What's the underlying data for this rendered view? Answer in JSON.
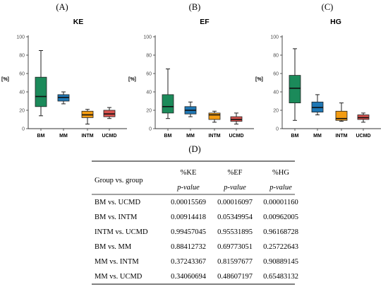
{
  "colors": {
    "BM": "#1b8a5a",
    "MM": "#1f77b4",
    "INTM": "#f39c12",
    "UCMD": "#d9534f"
  },
  "chart_data": [
    {
      "type": "box",
      "letter": "(A)",
      "title": "KE",
      "ylabel": "[%]",
      "ylim": [
        0,
        100
      ],
      "yticks": [
        0,
        20,
        40,
        60,
        80,
        100
      ],
      "categories": [
        "BM",
        "MM",
        "INTM",
        "UCMD"
      ],
      "boxes": [
        {
          "category": "BM",
          "min": 14,
          "q1": 24,
          "median": 35,
          "q3": 56,
          "max": 85
        },
        {
          "category": "MM",
          "min": 27,
          "q1": 30,
          "median": 34,
          "q3": 37,
          "max": 40
        },
        {
          "category": "INTM",
          "min": 5,
          "q1": 12,
          "median": 15,
          "q3": 19,
          "max": 21
        },
        {
          "category": "UCMD",
          "min": 11,
          "q1": 13,
          "median": 16,
          "q3": 20,
          "max": 23
        }
      ]
    },
    {
      "type": "box",
      "letter": "(B)",
      "title": "EF",
      "ylabel": "[%]",
      "ylim": [
        0,
        100
      ],
      "yticks": [
        0,
        20,
        40,
        60,
        80,
        100
      ],
      "categories": [
        "BM",
        "MM",
        "INTM",
        "UCMD"
      ],
      "boxes": [
        {
          "category": "BM",
          "min": 11,
          "q1": 17,
          "median": 24,
          "q3": 37,
          "max": 65
        },
        {
          "category": "MM",
          "min": 13,
          "q1": 16,
          "median": 20,
          "q3": 24,
          "max": 29
        },
        {
          "category": "INTM",
          "min": 7,
          "q1": 10,
          "median": 15,
          "q3": 17,
          "max": 19
        },
        {
          "category": "UCMD",
          "min": 5,
          "q1": 8,
          "median": 10,
          "q3": 13,
          "max": 17
        }
      ]
    },
    {
      "type": "box",
      "letter": "(C)",
      "title": "HG",
      "ylabel": "[%]",
      "ylim": [
        0,
        100
      ],
      "yticks": [
        0,
        20,
        40,
        60,
        80,
        100
      ],
      "categories": [
        "BM",
        "MM",
        "INTM",
        "UCMD"
      ],
      "boxes": [
        {
          "category": "BM",
          "min": 9,
          "q1": 28,
          "median": 44,
          "q3": 58,
          "max": 87
        },
        {
          "category": "MM",
          "min": 15,
          "q1": 18,
          "median": 23,
          "q3": 29,
          "max": 37
        },
        {
          "category": "INTM",
          "min": 8,
          "q1": 9,
          "median": 11,
          "q3": 19,
          "max": 28
        },
        {
          "category": "UCMD",
          "min": 7,
          "q1": 10,
          "median": 12,
          "q3": 15,
          "max": 17
        }
      ]
    },
    {
      "type": "table",
      "letter": "(D)",
      "header_row1": [
        "Group vs. group",
        "%KE",
        "%EF",
        "%HG"
      ],
      "header_row2": [
        "p-value",
        "p-value",
        "p-value"
      ],
      "rows": [
        [
          "BM vs. UCMD",
          "0.00015569",
          "0.00016097",
          "0.00001160"
        ],
        [
          "BM vs. INTM",
          "0.00914418",
          "0.05349954",
          "0.00962005"
        ],
        [
          "INTM vs. UCMD",
          "0.99457045",
          "0.95531895",
          "0.96168728"
        ],
        [
          "BM vs. MM",
          "0.88412732",
          "0.69773051",
          "0.25722643"
        ],
        [
          "MM vs. INTM",
          "0.37243367",
          "0.81597677",
          "0.90889145"
        ],
        [
          "MM vs. UCMD",
          "0.34060694",
          "0.48607197",
          "0.65483132"
        ]
      ]
    }
  ]
}
